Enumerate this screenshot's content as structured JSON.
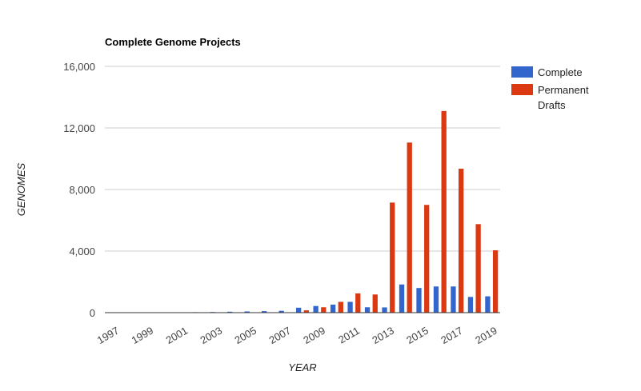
{
  "chart_data": {
    "type": "bar",
    "title": "Complete Genome Projects",
    "xlabel": "YEAR",
    "ylabel": "GENOMES",
    "ylim": [
      0,
      16000
    ],
    "yticks": [
      "16,000",
      "12,000",
      "8,000",
      "4,000",
      "0"
    ],
    "ytick_values": [
      16000,
      12000,
      8000,
      4000,
      0
    ],
    "categories": [
      "1997",
      "1998",
      "1999",
      "2000",
      "2001",
      "2002",
      "2003",
      "2004",
      "2005",
      "2006",
      "2007",
      "2008",
      "2009",
      "2010",
      "2011",
      "2012",
      "2013",
      "2014",
      "2015",
      "2016",
      "2017",
      "2018",
      "2019"
    ],
    "x_tick_labels": [
      "1997",
      "1999",
      "2001",
      "2003",
      "2005",
      "2007",
      "2009",
      "2011",
      "2013",
      "2015",
      "2017",
      "2019"
    ],
    "series": [
      {
        "name": "Complete",
        "color": "#3366cc",
        "values": [
          3,
          5,
          10,
          15,
          20,
          30,
          40,
          60,
          80,
          100,
          120,
          320,
          430,
          520,
          700,
          350,
          340,
          1830,
          1600,
          1700,
          1700,
          1020,
          1060
        ]
      },
      {
        "name": "Permanent Drafts",
        "legend_lines": [
          "Permanent",
          "Drafts"
        ],
        "color": "#dc3912",
        "values": [
          0,
          0,
          0,
          0,
          0,
          0,
          0,
          0,
          0,
          0,
          0,
          150,
          350,
          700,
          1250,
          1180,
          7150,
          11050,
          7000,
          13100,
          9350,
          5750,
          4050
        ]
      }
    ],
    "grid": true,
    "legend_position": "right"
  }
}
